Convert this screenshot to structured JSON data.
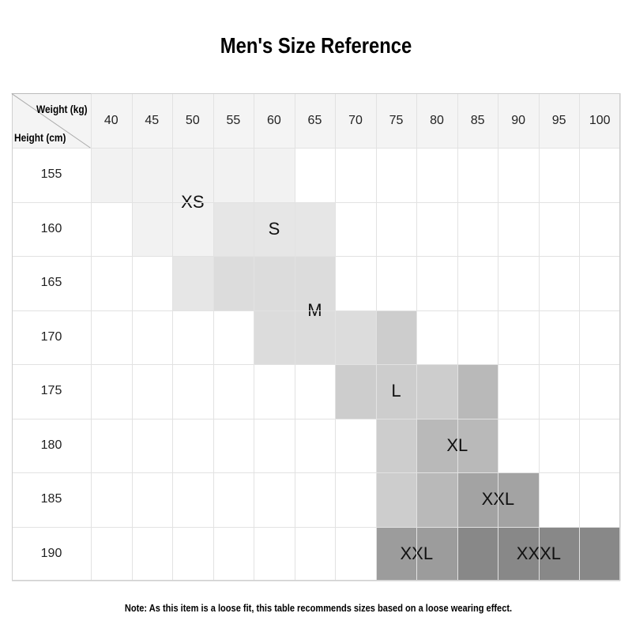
{
  "title": "Men's Size Reference",
  "table": {
    "weight_label": "Weight (kg)",
    "height_label": "Height (cm)",
    "columns": [
      "40",
      "45",
      "50",
      "55",
      "60",
      "65",
      "70",
      "75",
      "80",
      "85",
      "90",
      "95",
      "100"
    ],
    "rows": [
      "155",
      "160",
      "165",
      "170",
      "175",
      "180",
      "185",
      "190"
    ],
    "regions": [
      {
        "label": "XS",
        "color": "#f2f2f2",
        "spans": [
          [
            0,
            0,
            4
          ],
          [
            1,
            1,
            2
          ]
        ]
      },
      {
        "label": "S",
        "color": "#e6e6e6",
        "spans": [
          [
            1,
            3,
            5
          ]
        ]
      },
      {
        "label": "S",
        "color": "#e6e6e6",
        "spans": [
          [
            2,
            2,
            2
          ]
        ]
      },
      {
        "label": "M",
        "color": "#dcdcdc",
        "spans": [
          [
            2,
            3,
            5
          ],
          [
            3,
            4,
            6
          ]
        ]
      },
      {
        "label": "L",
        "color": "#cdcdcd",
        "spans": [
          [
            3,
            7,
            7
          ],
          [
            4,
            6,
            8
          ],
          [
            5,
            7,
            7
          ],
          [
            6,
            7,
            7
          ]
        ]
      },
      {
        "label": "XL",
        "color": "#b9b9b9",
        "spans": [
          [
            4,
            9,
            9
          ],
          [
            5,
            8,
            9
          ],
          [
            6,
            8,
            8
          ]
        ]
      },
      {
        "label": "XXL",
        "color": "#a3a3a3",
        "spans": [
          [
            6,
            9,
            10
          ]
        ]
      },
      {
        "label": "XXL",
        "color": "#9c9c9c",
        "spans": [
          [
            7,
            7,
            8
          ]
        ]
      },
      {
        "label": "XXXL",
        "color": "#888888",
        "spans": [
          [
            7,
            9,
            12
          ]
        ]
      }
    ]
  },
  "note": "Note: As this item is a loose fit, this table recommends sizes based on a loose wearing effect."
}
